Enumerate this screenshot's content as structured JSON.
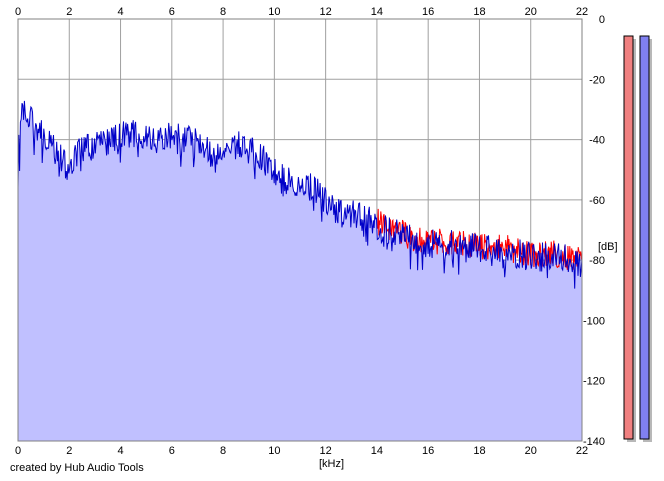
{
  "chart_data": {
    "type": "area",
    "title": "",
    "xlabel": "[kHz]",
    "ylabel": "[dB]",
    "xlim": [
      0,
      22
    ],
    "ylim": [
      -140,
      0
    ],
    "x_ticks": [
      0,
      2,
      4,
      6,
      8,
      10,
      12,
      14,
      16,
      18,
      20,
      22
    ],
    "y_ticks": [
      0,
      -20,
      -40,
      -60,
      -80,
      -100,
      -120,
      -140
    ],
    "grid": true,
    "series": [
      {
        "color": "#0000c8",
        "fill": "#c0c0ff",
        "x": [
          0,
          0.2,
          0.5,
          1,
          1.5,
          2,
          2.5,
          3,
          3.5,
          4,
          4.5,
          5,
          5.5,
          6,
          6.5,
          7,
          7.5,
          8,
          8.5,
          9,
          9.5,
          10,
          10.5,
          11,
          11.5,
          12,
          12.5,
          13,
          13.5,
          14,
          14.5,
          15,
          15.5,
          16,
          16.5,
          17,
          17.5,
          18,
          18.5,
          19,
          19.5,
          20,
          20.5,
          21,
          21.5,
          22
        ],
        "values": [
          -46,
          -29,
          -34,
          -39,
          -44,
          -48,
          -43,
          -41,
          -40,
          -39,
          -38,
          -38,
          -39,
          -38,
          -40,
          -39,
          -44,
          -44,
          -42,
          -43,
          -46,
          -51,
          -53,
          -55,
          -56,
          -60,
          -64,
          -65,
          -66,
          -69,
          -70,
          -72,
          -74,
          -74,
          -75,
          -75,
          -76,
          -76,
          -77,
          -77,
          -78,
          -79,
          -79,
          -79,
          -80,
          -81
        ]
      },
      {
        "color": "#ff0000",
        "x": [
          14,
          14.5,
          15,
          15.5,
          16,
          16.5,
          17,
          17.5,
          18,
          18.5,
          19,
          19.5,
          20,
          20.5,
          21,
          21.5,
          22
        ],
        "values": [
          -67,
          -70,
          -71,
          -73,
          -73,
          -74,
          -74,
          -75,
          -75,
          -76,
          -76,
          -77,
          -78,
          -78,
          -78,
          -79,
          -80
        ]
      }
    ]
  },
  "meters": [
    {
      "level": 1.0,
      "color": "#f08080"
    },
    {
      "level": 1.0,
      "color": "#8080f0"
    }
  ],
  "credit": "created by Hub Audio Tools"
}
